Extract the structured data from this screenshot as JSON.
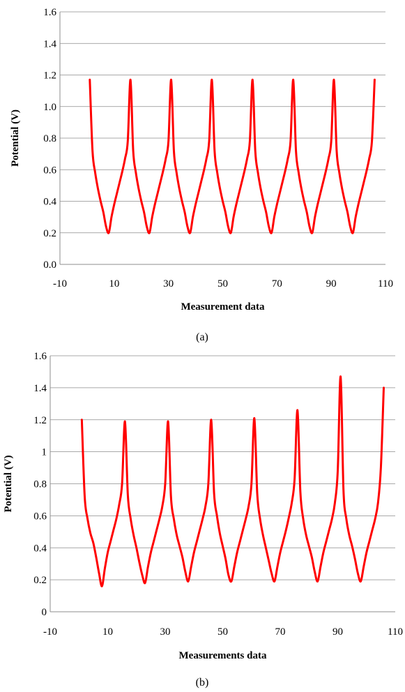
{
  "chart_data": [
    {
      "type": "line",
      "caption": "(a)",
      "xlabel": "Measurement data",
      "ylabel": "Potential (V)",
      "xlim": [
        -10,
        110
      ],
      "ylim": [
        0,
        1.6
      ],
      "xticks": [
        -10,
        10,
        30,
        50,
        70,
        90,
        110
      ],
      "xtick_labels": [
        "-10",
        "10",
        "30",
        "50",
        "70",
        "90",
        "110"
      ],
      "yticks": [
        0,
        0.2,
        0.4,
        0.6,
        0.8,
        1.0,
        1.2,
        1.4,
        1.6
      ],
      "ytick_labels": [
        "0.0",
        "0.2",
        "0.4",
        "0.6",
        "0.8",
        "1.0",
        "1.2",
        "1.4",
        "1.6"
      ],
      "grid": true,
      "color": "#ff0000",
      "series": [
        {
          "x": [
            1,
            2,
            3,
            4,
            5,
            6,
            7,
            8,
            9,
            10,
            11,
            12,
            13,
            14,
            15,
            16,
            17,
            18,
            19,
            20,
            21,
            22,
            23,
            24,
            25,
            26,
            27,
            28,
            29,
            30,
            31,
            32,
            33,
            34,
            35,
            36,
            37,
            38,
            39,
            40,
            41,
            42,
            43,
            44,
            45,
            46,
            47,
            48,
            49,
            50,
            51,
            52,
            53,
            54,
            55,
            56,
            57,
            58,
            59,
            60,
            61,
            62,
            63,
            64,
            65,
            66,
            67,
            68,
            69,
            70,
            71,
            72,
            73,
            74,
            75,
            76,
            77,
            78,
            79,
            80,
            81,
            82,
            83,
            84,
            85,
            86,
            87,
            88,
            89,
            90,
            91,
            92,
            93,
            94,
            95,
            96,
            97,
            98,
            99,
            100,
            101,
            102,
            103,
            104,
            105,
            106
          ],
          "y": [
            1.17,
            0.72,
            0.58,
            0.48,
            0.4,
            0.33,
            0.24,
            0.2,
            0.3,
            0.38,
            0.45,
            0.52,
            0.59,
            0.67,
            0.78,
            1.17,
            0.72,
            0.58,
            0.48,
            0.4,
            0.33,
            0.24,
            0.2,
            0.3,
            0.38,
            0.45,
            0.52,
            0.59,
            0.67,
            0.78,
            1.17,
            0.72,
            0.58,
            0.48,
            0.4,
            0.33,
            0.24,
            0.2,
            0.3,
            0.38,
            0.45,
            0.52,
            0.59,
            0.67,
            0.78,
            1.17,
            0.72,
            0.58,
            0.48,
            0.4,
            0.33,
            0.24,
            0.2,
            0.3,
            0.38,
            0.45,
            0.52,
            0.59,
            0.67,
            0.78,
            1.17,
            0.72,
            0.58,
            0.48,
            0.4,
            0.33,
            0.24,
            0.2,
            0.3,
            0.38,
            0.45,
            0.52,
            0.59,
            0.67,
            0.78,
            1.17,
            0.72,
            0.58,
            0.48,
            0.4,
            0.33,
            0.24,
            0.2,
            0.3,
            0.38,
            0.45,
            0.52,
            0.59,
            0.67,
            0.78,
            1.17,
            0.72,
            0.58,
            0.48,
            0.4,
            0.33,
            0.24,
            0.2,
            0.3,
            0.38,
            0.45,
            0.52,
            0.59,
            0.67,
            0.78,
            1.17
          ]
        }
      ]
    },
    {
      "type": "line",
      "caption": "(b)",
      "xlabel": "Measurements data",
      "ylabel": "Potential (V)",
      "xlim": [
        -10,
        110
      ],
      "ylim": [
        0,
        1.6
      ],
      "xticks": [
        -10,
        10,
        30,
        50,
        70,
        90,
        110
      ],
      "xtick_labels": [
        "-10",
        "10",
        "30",
        "50",
        "70",
        "90",
        "110"
      ],
      "yticks": [
        0,
        0.2,
        0.4,
        0.6,
        0.8,
        1.0,
        1.2,
        1.4,
        1.6
      ],
      "ytick_labels": [
        "0",
        "0.2",
        "0.4",
        "0.6",
        "0.8",
        "1",
        "1.2",
        "1.4",
        "1.6"
      ],
      "grid": true,
      "color": "#ff0000",
      "series": [
        {
          "x": [
            1,
            2,
            3,
            4,
            5,
            6,
            7,
            8,
            9,
            10,
            11,
            12,
            13,
            14,
            15,
            16,
            17,
            18,
            19,
            20,
            21,
            22,
            23,
            24,
            25,
            26,
            27,
            28,
            29,
            30,
            31,
            32,
            33,
            34,
            35,
            36,
            37,
            38,
            39,
            40,
            41,
            42,
            43,
            44,
            45,
            46,
            47,
            48,
            49,
            50,
            51,
            52,
            53,
            54,
            55,
            56,
            57,
            58,
            59,
            60,
            61,
            62,
            63,
            64,
            65,
            66,
            67,
            68,
            69,
            70,
            71,
            72,
            73,
            74,
            75,
            76,
            77,
            78,
            79,
            80,
            81,
            82,
            83,
            84,
            85,
            86,
            87,
            88,
            89,
            90,
            91,
            92,
            93,
            94,
            95,
            96,
            97,
            98,
            99,
            100,
            101,
            102,
            103,
            104,
            105,
            106
          ],
          "y": [
            1.2,
            0.72,
            0.58,
            0.49,
            0.43,
            0.34,
            0.24,
            0.16,
            0.27,
            0.37,
            0.44,
            0.51,
            0.58,
            0.67,
            0.8,
            1.19,
            0.73,
            0.58,
            0.48,
            0.4,
            0.31,
            0.23,
            0.18,
            0.28,
            0.37,
            0.44,
            0.51,
            0.58,
            0.66,
            0.8,
            1.19,
            0.72,
            0.58,
            0.48,
            0.41,
            0.34,
            0.25,
            0.19,
            0.28,
            0.37,
            0.44,
            0.51,
            0.58,
            0.66,
            0.8,
            1.2,
            0.74,
            0.6,
            0.49,
            0.41,
            0.33,
            0.23,
            0.19,
            0.28,
            0.37,
            0.44,
            0.51,
            0.58,
            0.66,
            0.8,
            1.21,
            0.74,
            0.58,
            0.48,
            0.4,
            0.32,
            0.24,
            0.19,
            0.28,
            0.37,
            0.44,
            0.51,
            0.59,
            0.68,
            0.83,
            1.26,
            0.75,
            0.58,
            0.48,
            0.41,
            0.34,
            0.25,
            0.19,
            0.28,
            0.37,
            0.44,
            0.51,
            0.58,
            0.68,
            0.88,
            1.47,
            0.76,
            0.58,
            0.48,
            0.41,
            0.33,
            0.24,
            0.19,
            0.28,
            0.37,
            0.44,
            0.51,
            0.58,
            0.68,
            0.9,
            1.4
          ]
        }
      ]
    }
  ]
}
